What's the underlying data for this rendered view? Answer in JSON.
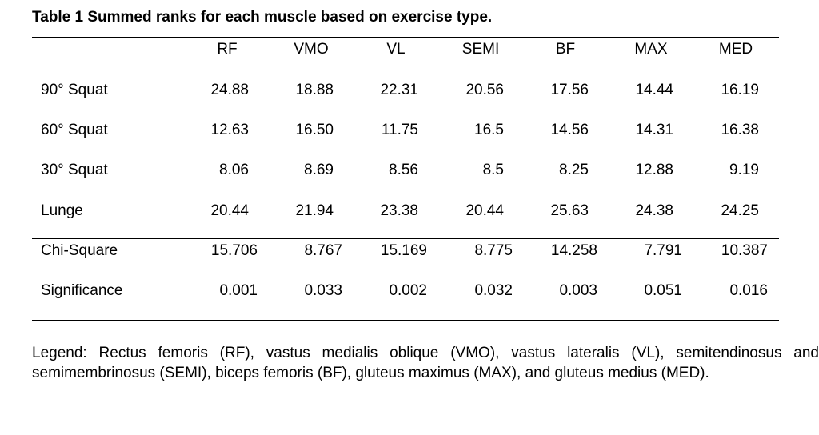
{
  "table": {
    "title": "Table 1 Summed ranks for each muscle based on exercise type.",
    "columns": [
      "RF",
      "VMO",
      "VL",
      "SEMI",
      "BF",
      "MAX",
      "MED"
    ],
    "rows": [
      {
        "label": "90° Squat",
        "values": [
          "24.88",
          "18.88",
          "22.31",
          "20.56",
          "17.56",
          "14.44",
          "16.19"
        ]
      },
      {
        "label": "60° Squat",
        "values": [
          "12.63",
          "16.50",
          "11.75",
          "16.5",
          "14.56",
          "14.31",
          "16.38"
        ]
      },
      {
        "label": "30° Squat",
        "values": [
          "8.06",
          "8.69",
          "8.56",
          "8.5",
          "8.25",
          "12.88",
          "9.19"
        ]
      },
      {
        "label": "Lunge",
        "values": [
          "20.44",
          "21.94",
          "23.38",
          "20.44",
          "25.63",
          "24.38",
          "24.25"
        ]
      }
    ],
    "stats": [
      {
        "label": "Chi-Square",
        "values": [
          "15.706",
          "8.767",
          "15.169",
          "8.775",
          "14.258",
          "7.791",
          "10.387"
        ]
      },
      {
        "label": "Significance",
        "values": [
          "0.001",
          "0.033",
          "0.002",
          "0.032",
          "0.003",
          "0.051",
          "0.016"
        ]
      }
    ],
    "legend": "Legend: Rectus femoris (RF), vastus medialis oblique (VMO), vastus lateralis (VL), semitendinosus and semimembrinosus (SEMI), biceps femoris (BF), gluteus maximus (MAX), and gluteus medius (MED)."
  }
}
